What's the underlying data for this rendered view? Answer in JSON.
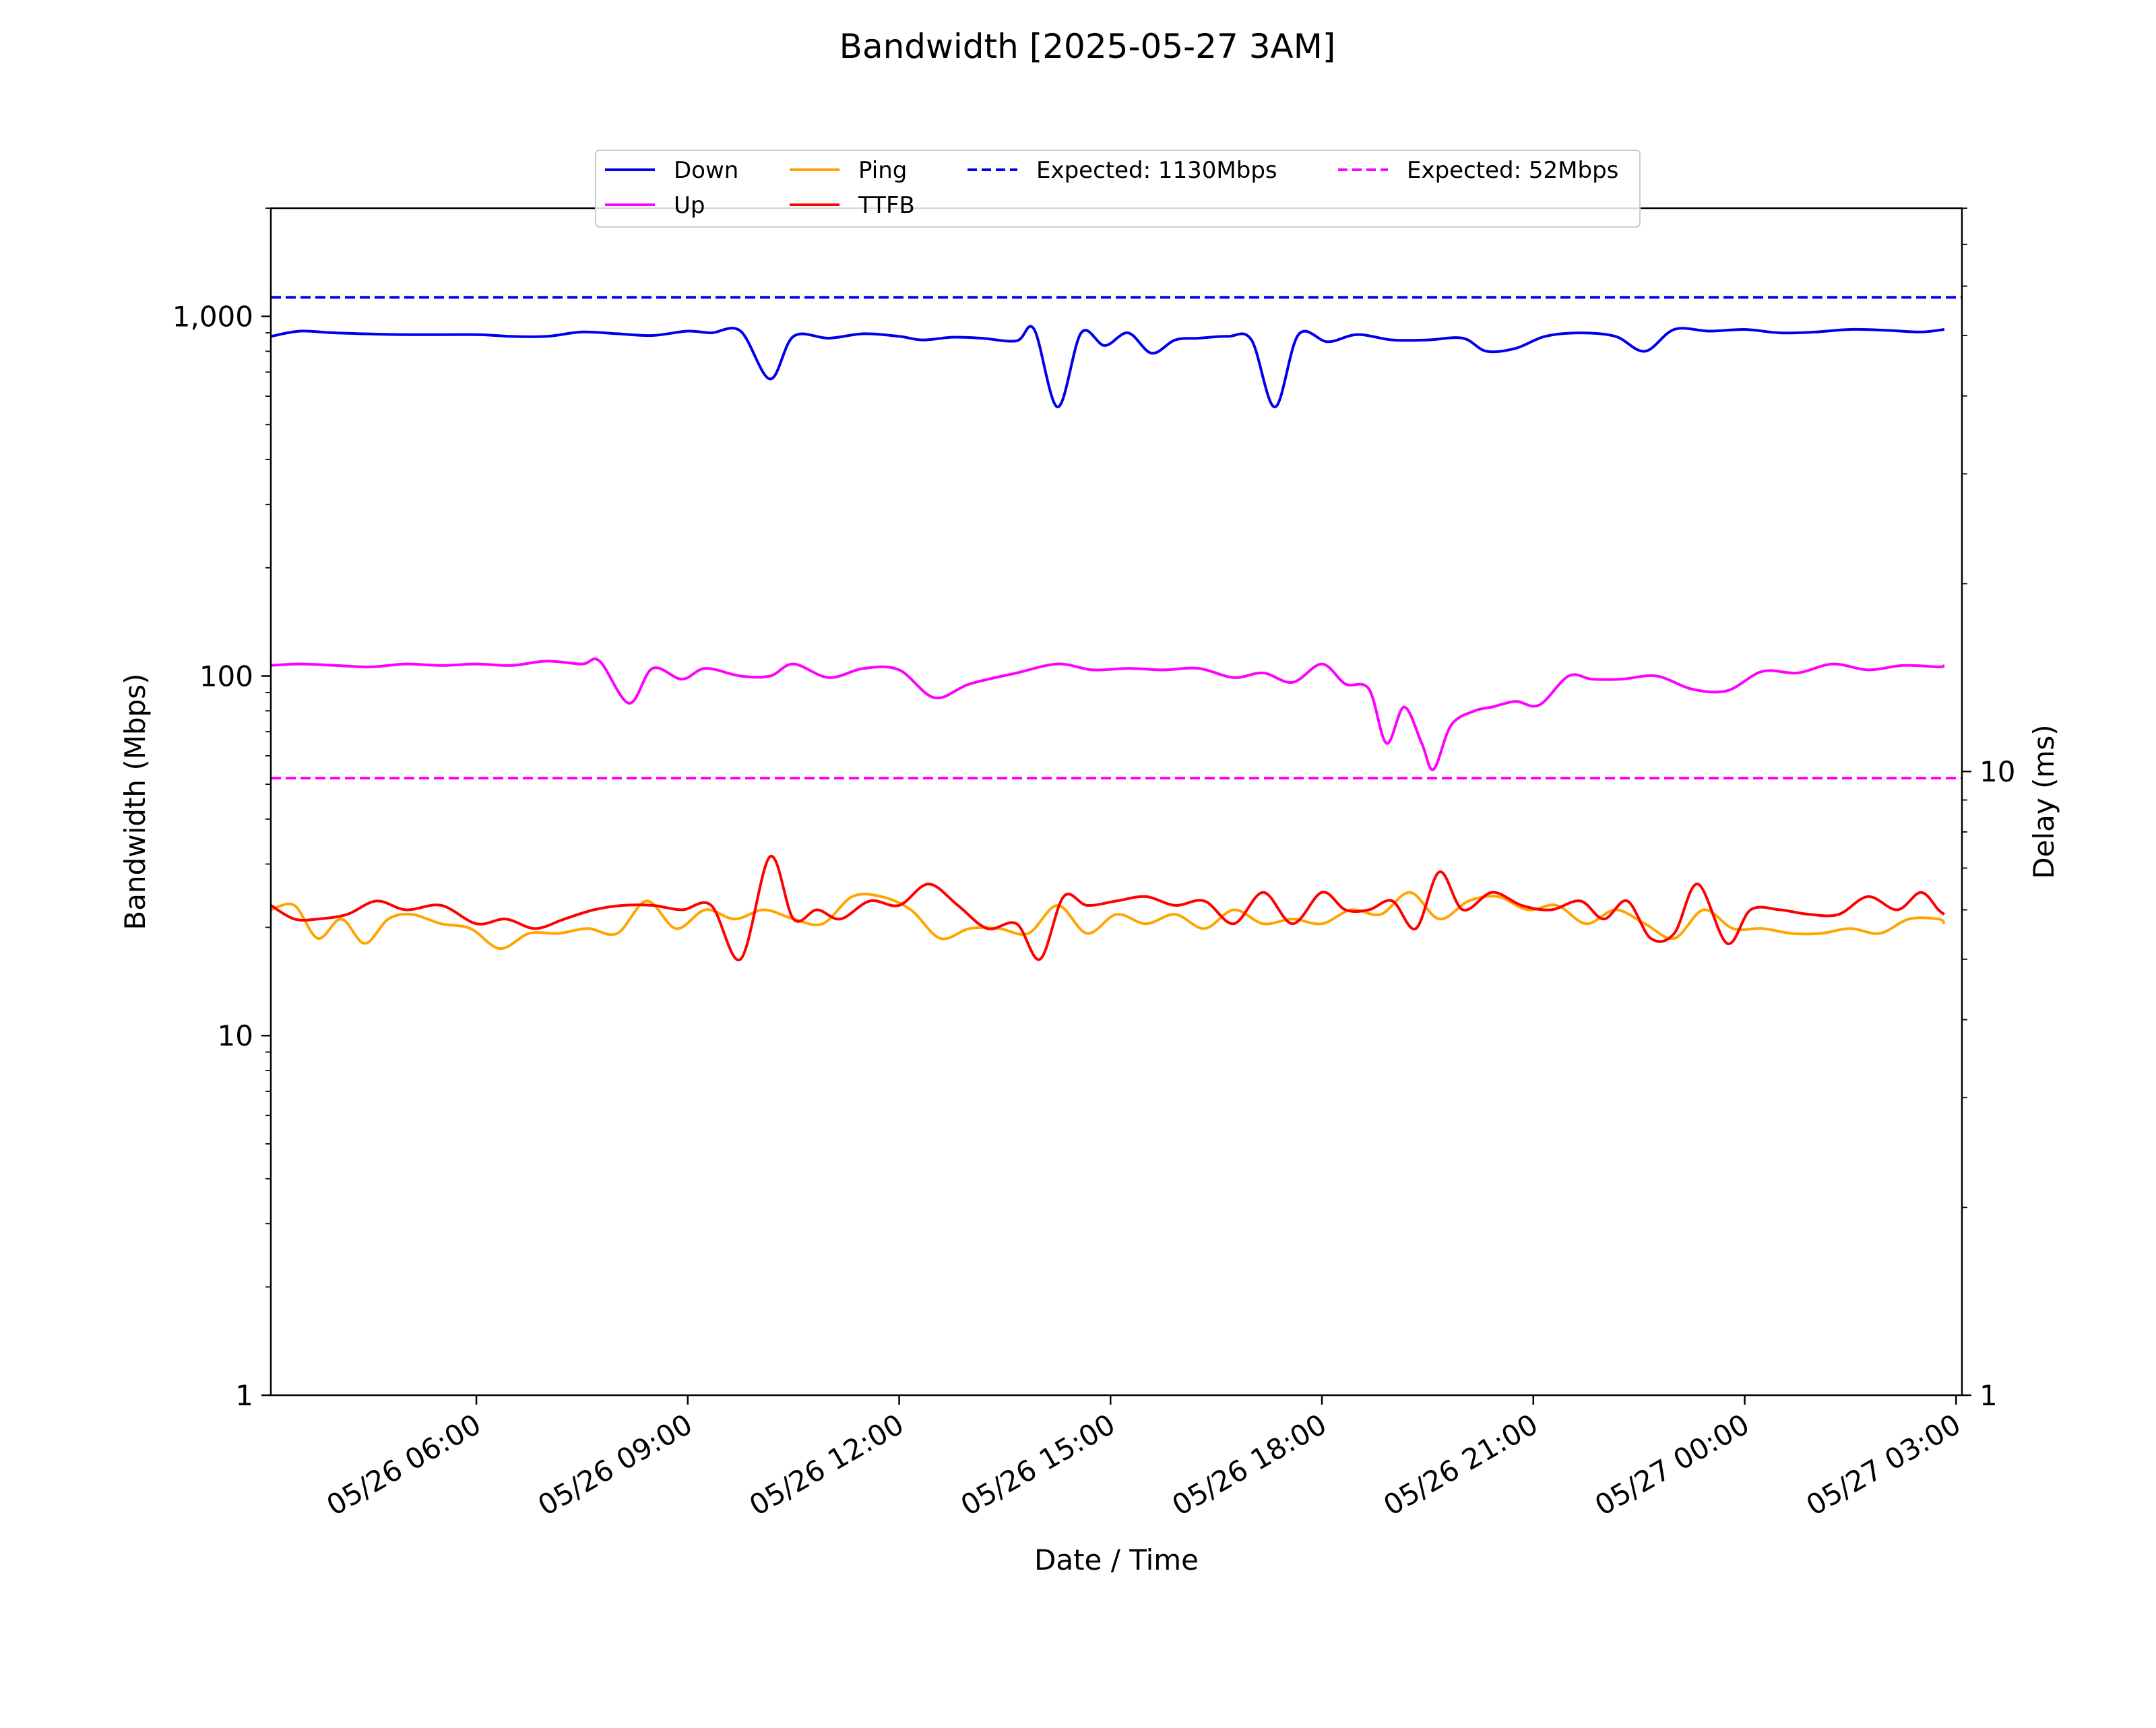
{
  "chart_data": {
    "type": "line",
    "title": "Bandwidth [2025-05-27 3AM]",
    "xlabel": "Date / Time",
    "ylabel_left": "Bandwidth (Mbps)",
    "ylabel_right": "Delay (ms)",
    "x_range": [
      "2025-05-26T03:05",
      "2025-05-27T03:05"
    ],
    "ylim_left": [
      1,
      2000
    ],
    "ylim_right": [
      1,
      80
    ],
    "yscale_left": "log",
    "yscale_right": "log",
    "grid": false,
    "legend_position": "top-center",
    "x_ticks": [
      {
        "t": "2025-05-26T06:00",
        "label": "05/26 06:00"
      },
      {
        "t": "2025-05-26T09:00",
        "label": "05/26 09:00"
      },
      {
        "t": "2025-05-26T12:00",
        "label": "05/26 12:00"
      },
      {
        "t": "2025-05-26T15:00",
        "label": "05/26 15:00"
      },
      {
        "t": "2025-05-26T18:00",
        "label": "05/26 18:00"
      },
      {
        "t": "2025-05-26T21:00",
        "label": "05/26 21:00"
      },
      {
        "t": "2025-05-27T00:00",
        "label": "05/27 00:00"
      },
      {
        "t": "2025-05-27T03:00",
        "label": "05/27 03:00"
      }
    ],
    "y_ticks_left": [
      {
        "v": 1,
        "label": "1"
      },
      {
        "v": 10,
        "label": "10"
      },
      {
        "v": 100,
        "label": "100"
      },
      {
        "v": 1000,
        "label": "1,000"
      }
    ],
    "y_ticks_right": [
      {
        "v": 1,
        "label": "1"
      },
      {
        "v": 10,
        "label": "10"
      }
    ],
    "legend": [
      {
        "label": "Down",
        "color": "#0000ee",
        "dash": false
      },
      {
        "label": "Up",
        "color": "#ff00ff",
        "dash": false
      },
      {
        "label": "Ping",
        "color": "#ffa500",
        "dash": false
      },
      {
        "label": "TTFB",
        "color": "#ff0000",
        "dash": false
      },
      {
        "label": "Expected: 1130Mbps",
        "color": "#0000ee",
        "dash": true
      },
      {
        "label": "Expected: 52Mbps",
        "color": "#ff00ff",
        "dash": true
      }
    ],
    "reference_lines": [
      {
        "name": "Expected: 1130Mbps",
        "axis": "left",
        "value": 1130,
        "color": "#0000ee"
      },
      {
        "name": "Expected: 52Mbps",
        "axis": "left",
        "value": 52,
        "color": "#ff00ff"
      }
    ],
    "series": [
      {
        "name": "Down",
        "axis": "left",
        "color": "#0000ee",
        "x": [
          "2025-05-26T03:05",
          "2025-05-26T03:30",
          "2025-05-26T04:00",
          "2025-05-26T05:00",
          "2025-05-26T06:00",
          "2025-05-26T06:30",
          "2025-05-26T07:00",
          "2025-05-26T07:30",
          "2025-05-26T08:00",
          "2025-05-26T08:30",
          "2025-05-26T09:00",
          "2025-05-26T09:20",
          "2025-05-26T09:45",
          "2025-05-26T10:10",
          "2025-05-26T10:30",
          "2025-05-26T11:00",
          "2025-05-26T11:30",
          "2025-05-26T12:00",
          "2025-05-26T12:20",
          "2025-05-26T12:45",
          "2025-05-26T13:10",
          "2025-05-26T13:40",
          "2025-05-26T13:55",
          "2025-05-26T14:15",
          "2025-05-26T14:35",
          "2025-05-26T14:55",
          "2025-05-26T15:15",
          "2025-05-26T15:35",
          "2025-05-26T15:55",
          "2025-05-26T16:15",
          "2025-05-26T16:40",
          "2025-05-26T17:00",
          "2025-05-26T17:20",
          "2025-05-26T17:40",
          "2025-05-26T18:05",
          "2025-05-26T18:30",
          "2025-05-26T19:00",
          "2025-05-26T19:30",
          "2025-05-26T20:00",
          "2025-05-26T20:20",
          "2025-05-26T20:45",
          "2025-05-26T21:10",
          "2025-05-26T21:40",
          "2025-05-26T22:10",
          "2025-05-26T22:35",
          "2025-05-26T23:00",
          "2025-05-26T23:30",
          "2025-05-27T00:00",
          "2025-05-27T00:30",
          "2025-05-27T01:00",
          "2025-05-27T01:30",
          "2025-05-27T02:00",
          "2025-05-27T02:30",
          "2025-05-27T02:50"
        ],
        "y": [
          880,
          910,
          900,
          890,
          890,
          880,
          880,
          905,
          895,
          885,
          910,
          900,
          910,
          670,
          880,
          870,
          895,
          880,
          860,
          875,
          870,
          855,
          920,
          560,
          900,
          830,
          900,
          790,
          860,
          870,
          880,
          860,
          560,
          890,
          850,
          890,
          860,
          860,
          870,
          800,
          815,
          880,
          900,
          880,
          800,
          920,
          910,
          920,
          900,
          905,
          920,
          915,
          905,
          920
        ]
      },
      {
        "name": "Up",
        "axis": "left",
        "color": "#ff00ff",
        "x": [
          "2025-05-26T03:05",
          "2025-05-26T03:30",
          "2025-05-26T04:00",
          "2025-05-26T04:30",
          "2025-05-26T05:00",
          "2025-05-26T05:30",
          "2025-05-26T06:00",
          "2025-05-26T06:30",
          "2025-05-26T07:00",
          "2025-05-26T07:30",
          "2025-05-26T07:45",
          "2025-05-26T08:10",
          "2025-05-26T08:30",
          "2025-05-26T08:55",
          "2025-05-26T09:15",
          "2025-05-26T09:45",
          "2025-05-26T10:10",
          "2025-05-26T10:30",
          "2025-05-26T11:00",
          "2025-05-26T11:30",
          "2025-05-26T12:00",
          "2025-05-26T12:30",
          "2025-05-26T13:00",
          "2025-05-26T13:40",
          "2025-05-26T14:15",
          "2025-05-26T14:45",
          "2025-05-26T15:15",
          "2025-05-26T15:45",
          "2025-05-26T16:15",
          "2025-05-26T16:45",
          "2025-05-26T17:10",
          "2025-05-26T17:35",
          "2025-05-26T18:00",
          "2025-05-26T18:20",
          "2025-05-26T18:40",
          "2025-05-26T18:55",
          "2025-05-26T19:10",
          "2025-05-26T19:25",
          "2025-05-26T19:35",
          "2025-05-26T19:50",
          "2025-05-26T20:10",
          "2025-05-26T20:25",
          "2025-05-26T20:45",
          "2025-05-26T21:05",
          "2025-05-26T21:30",
          "2025-05-26T21:50",
          "2025-05-26T22:15",
          "2025-05-26T22:45",
          "2025-05-26T23:15",
          "2025-05-26T23:45",
          "2025-05-27T00:15",
          "2025-05-27T00:45",
          "2025-05-27T01:15",
          "2025-05-27T01:45",
          "2025-05-27T02:15",
          "2025-05-27T02:45",
          "2025-05-27T02:50"
        ],
        "y": [
          107,
          108,
          107,
          106,
          108,
          107,
          108,
          107,
          110,
          108,
          110,
          84,
          105,
          98,
          105,
          100,
          100,
          108,
          99,
          105,
          104,
          87,
          95,
          102,
          108,
          104,
          105,
          104,
          105,
          99,
          102,
          96,
          108,
          95,
          92,
          65,
          82,
          65,
          55,
          73,
          80,
          82,
          85,
          83,
          100,
          98,
          98,
          100,
          92,
          91,
          103,
          102,
          108,
          104,
          107,
          106,
          107
        ]
      },
      {
        "name": "Ping",
        "axis": "right",
        "color": "#ffa500",
        "x": [
          "2025-05-26T03:05",
          "2025-05-26T03:25",
          "2025-05-26T03:45",
          "2025-05-26T04:05",
          "2025-05-26T04:25",
          "2025-05-26T04:45",
          "2025-05-26T05:05",
          "2025-05-26T05:30",
          "2025-05-26T05:55",
          "2025-05-26T06:20",
          "2025-05-26T06:45",
          "2025-05-26T07:10",
          "2025-05-26T07:35",
          "2025-05-26T08:00",
          "2025-05-26T08:25",
          "2025-05-26T08:50",
          "2025-05-26T09:15",
          "2025-05-26T09:40",
          "2025-05-26T10:05",
          "2025-05-26T10:30",
          "2025-05-26T10:55",
          "2025-05-26T11:20",
          "2025-05-26T11:45",
          "2025-05-26T12:10",
          "2025-05-26T12:35",
          "2025-05-26T13:00",
          "2025-05-26T13:25",
          "2025-05-26T13:50",
          "2025-05-26T14:15",
          "2025-05-26T14:40",
          "2025-05-26T15:05",
          "2025-05-26T15:30",
          "2025-05-26T15:55",
          "2025-05-26T16:20",
          "2025-05-26T16:45",
          "2025-05-26T17:10",
          "2025-05-26T17:35",
          "2025-05-26T18:00",
          "2025-05-26T18:25",
          "2025-05-26T18:50",
          "2025-05-26T19:15",
          "2025-05-26T19:40",
          "2025-05-26T20:05",
          "2025-05-26T20:30",
          "2025-05-26T20:55",
          "2025-05-26T21:20",
          "2025-05-26T21:45",
          "2025-05-26T22:10",
          "2025-05-26T22:35",
          "2025-05-26T23:00",
          "2025-05-26T23:25",
          "2025-05-26T23:50",
          "2025-05-27T00:15",
          "2025-05-27T00:40",
          "2025-05-27T01:05",
          "2025-05-27T01:30",
          "2025-05-27T01:55",
          "2025-05-27T02:20",
          "2025-05-27T02:45",
          "2025-05-27T02:50"
        ],
        "y": [
          6.0,
          6.1,
          5.4,
          5.8,
          5.3,
          5.8,
          5.9,
          5.7,
          5.6,
          5.2,
          5.5,
          5.5,
          5.6,
          5.5,
          6.2,
          5.6,
          6.0,
          5.8,
          6.0,
          5.8,
          5.7,
          6.3,
          6.3,
          6.0,
          5.4,
          5.6,
          5.6,
          5.5,
          6.1,
          5.5,
          5.9,
          5.7,
          5.9,
          5.6,
          6.0,
          5.7,
          5.8,
          5.7,
          6.0,
          5.9,
          6.4,
          5.8,
          6.2,
          6.3,
          6.0,
          6.1,
          5.7,
          6.0,
          5.7,
          5.4,
          6.0,
          5.6,
          5.6,
          5.5,
          5.5,
          5.6,
          5.5,
          5.8,
          5.8,
          5.7
        ]
      },
      {
        "name": "TTFB",
        "axis": "right",
        "color": "#ff0000",
        "x": [
          "2025-05-26T03:05",
          "2025-05-26T03:25",
          "2025-05-26T03:45",
          "2025-05-26T04:10",
          "2025-05-26T04:35",
          "2025-05-26T05:00",
          "2025-05-26T05:30",
          "2025-05-26T06:00",
          "2025-05-26T06:25",
          "2025-05-26T06:50",
          "2025-05-26T07:15",
          "2025-05-26T07:40",
          "2025-05-26T08:05",
          "2025-05-26T08:30",
          "2025-05-26T08:55",
          "2025-05-26T09:20",
          "2025-05-26T09:45",
          "2025-05-26T10:10",
          "2025-05-26T10:30",
          "2025-05-26T10:50",
          "2025-05-26T11:10",
          "2025-05-26T11:35",
          "2025-05-26T12:00",
          "2025-05-26T12:25",
          "2025-05-26T12:50",
          "2025-05-26T13:15",
          "2025-05-26T13:40",
          "2025-05-26T14:00",
          "2025-05-26T14:20",
          "2025-05-26T14:40",
          "2025-05-26T15:05",
          "2025-05-26T15:30",
          "2025-05-26T15:55",
          "2025-05-26T16:20",
          "2025-05-26T16:45",
          "2025-05-26T17:10",
          "2025-05-26T17:35",
          "2025-05-26T18:00",
          "2025-05-26T18:20",
          "2025-05-26T18:40",
          "2025-05-26T19:00",
          "2025-05-26T19:20",
          "2025-05-26T19:40",
          "2025-05-26T20:00",
          "2025-05-26T20:25",
          "2025-05-26T20:50",
          "2025-05-26T21:15",
          "2025-05-26T21:40",
          "2025-05-26T22:00",
          "2025-05-26T22:20",
          "2025-05-26T22:40",
          "2025-05-26T23:00",
          "2025-05-26T23:20",
          "2025-05-26T23:45",
          "2025-05-27T00:05",
          "2025-05-27T00:30",
          "2025-05-27T00:55",
          "2025-05-27T01:20",
          "2025-05-27T01:45",
          "2025-05-27T02:10",
          "2025-05-27T02:30",
          "2025-05-27T02:45",
          "2025-05-27T02:50"
        ],
        "y": [
          6.1,
          5.8,
          5.8,
          5.9,
          6.2,
          6.0,
          6.1,
          5.7,
          5.8,
          5.6,
          5.8,
          6.0,
          6.1,
          6.1,
          6.0,
          6.1,
          5.0,
          7.3,
          5.8,
          6.0,
          5.8,
          6.2,
          6.1,
          6.6,
          6.1,
          5.6,
          5.7,
          5.0,
          6.3,
          6.1,
          6.2,
          6.3,
          6.1,
          6.2,
          5.7,
          6.4,
          5.7,
          6.4,
          6.0,
          6.0,
          6.2,
          5.6,
          6.9,
          6.0,
          6.4,
          6.1,
          6.0,
          6.2,
          5.8,
          6.2,
          5.4,
          5.5,
          6.6,
          5.3,
          6.0,
          6.0,
          5.9,
          5.9,
          6.3,
          6.0,
          6.4,
          6.0,
          5.9
        ]
      }
    ]
  }
}
